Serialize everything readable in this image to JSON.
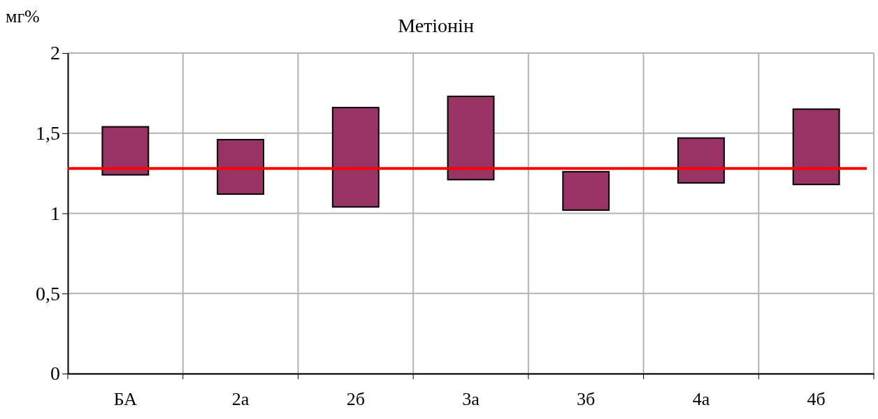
{
  "chart_data": {
    "type": "bar",
    "title": "Метіонін",
    "ylabel": "мг%",
    "categories": [
      "БА",
      "2а",
      "2б",
      "3а",
      "3б",
      "4а",
      "4б"
    ],
    "values": [
      0.3,
      0.34,
      0.62,
      0.52,
      0.24,
      0.28,
      0.47
    ],
    "base": [
      1.24,
      1.12,
      1.04,
      1.21,
      1.02,
      1.19,
      1.18
    ],
    "color": "#993366",
    "ylim": [
      0,
      2
    ],
    "yticks": [
      {
        "value": 0,
        "label": "0"
      },
      {
        "value": 0.5,
        "label": "0,5"
      },
      {
        "value": 1,
        "label": "1"
      },
      {
        "value": 1.5,
        "label": "1,5"
      },
      {
        "value": 2,
        "label": "2"
      }
    ],
    "ref_lines": [
      {
        "axis": "y",
        "value": 1.28,
        "color": "#ff0000"
      }
    ],
    "grid": true
  }
}
